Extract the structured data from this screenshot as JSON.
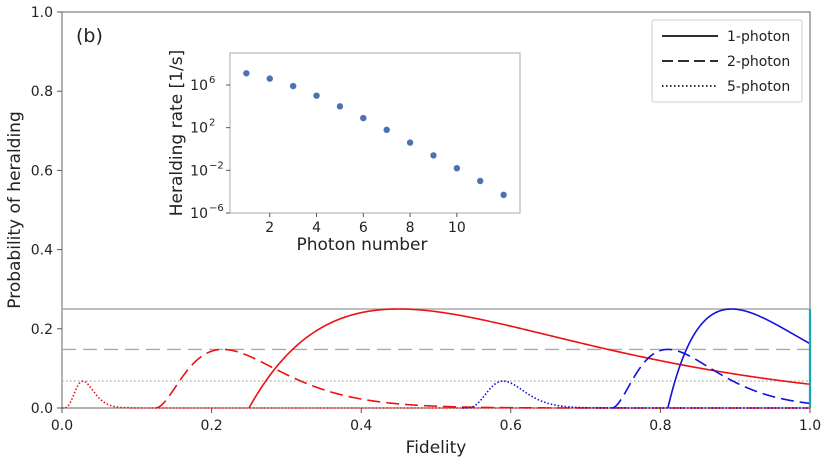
{
  "chart_data": {
    "type": "line",
    "panel_label": "(b)",
    "xlabel": "Fidelity",
    "ylabel": "Probability of heralding",
    "xlim": [
      0.0,
      1.0
    ],
    "ylim": [
      0.0,
      1.0
    ],
    "x_ticks": [
      "0.0",
      "0.2",
      "0.4",
      "0.6",
      "0.8",
      "1.0"
    ],
    "y_ticks": [
      "0.0",
      "0.2",
      "0.4",
      "0.6",
      "0.8",
      "1.0"
    ],
    "grid": false,
    "legend_position": "top-right",
    "legend": [
      {
        "label": "1-photon",
        "style": "solid"
      },
      {
        "label": "2-photon",
        "style": "dashed"
      },
      {
        "label": "5-photon",
        "style": "dotted"
      }
    ],
    "reference_lines": [
      {
        "name": "1-photon-max",
        "y": 0.25,
        "style": "solid",
        "color": "#aaaaaa"
      },
      {
        "name": "2-photon-max",
        "y": 0.148,
        "style": "dashed",
        "color": "#aaaaaa"
      },
      {
        "name": "5-photon-max",
        "y": 0.068,
        "style": "dotted",
        "color": "#aaaaaa"
      }
    ],
    "series": [
      {
        "name": "1-photon",
        "color": "#ee1111",
        "style": "solid",
        "n": 1,
        "f_start": 0.25,
        "peak_f": 0.45,
        "peak_p": 0.25
      },
      {
        "name": "2-photon",
        "color": "#ee1111",
        "style": "dashed",
        "n": 2,
        "f_start": 0.125,
        "peak_f": 0.215,
        "peak_p": 0.148
      },
      {
        "name": "5-photon",
        "color": "#ee1111",
        "style": "dotted",
        "n": 5,
        "f_start": 0.0,
        "peak_f": 0.028,
        "peak_p": 0.068
      },
      {
        "name": "1-photon",
        "color": "#1111dd",
        "style": "solid",
        "n": 1,
        "f_start": 0.81,
        "peak_f": 0.895,
        "peak_p": 0.25
      },
      {
        "name": "2-photon",
        "color": "#1111dd",
        "style": "dashed",
        "n": 2,
        "f_start": 0.735,
        "peak_f": 0.81,
        "peak_p": 0.148
      },
      {
        "name": "5-photon",
        "color": "#1111dd",
        "style": "dotted",
        "n": 5,
        "f_start": 0.535,
        "peak_f": 0.59,
        "peak_p": 0.068
      }
    ],
    "marker_line": {
      "x": 1.0,
      "y_from": 0.0,
      "y_to": 0.25,
      "color": "#17a8b0"
    },
    "inset": {
      "type": "scatter",
      "xlabel": "Photon number",
      "ylabel": "Heralding rate [1/s]",
      "x_ticks": [
        "2",
        "4",
        "6",
        "8",
        "10"
      ],
      "y_tick_bases": [
        "10",
        "10",
        "10",
        "10"
      ],
      "y_tick_exponents": [
        "−6",
        "−2",
        "2",
        "6"
      ],
      "x": [
        1,
        2,
        3,
        4,
        5,
        6,
        7,
        8,
        9,
        10,
        11,
        12
      ],
      "y_log10": [
        7.1,
        6.6,
        5.9,
        5.0,
        4.0,
        2.9,
        1.8,
        0.6,
        -0.6,
        -1.8,
        -3.0,
        -4.3
      ],
      "xlim": [
        0.3,
        12.7
      ],
      "ylim_log10": [
        -6,
        9
      ],
      "color": "#4c72b0"
    }
  }
}
